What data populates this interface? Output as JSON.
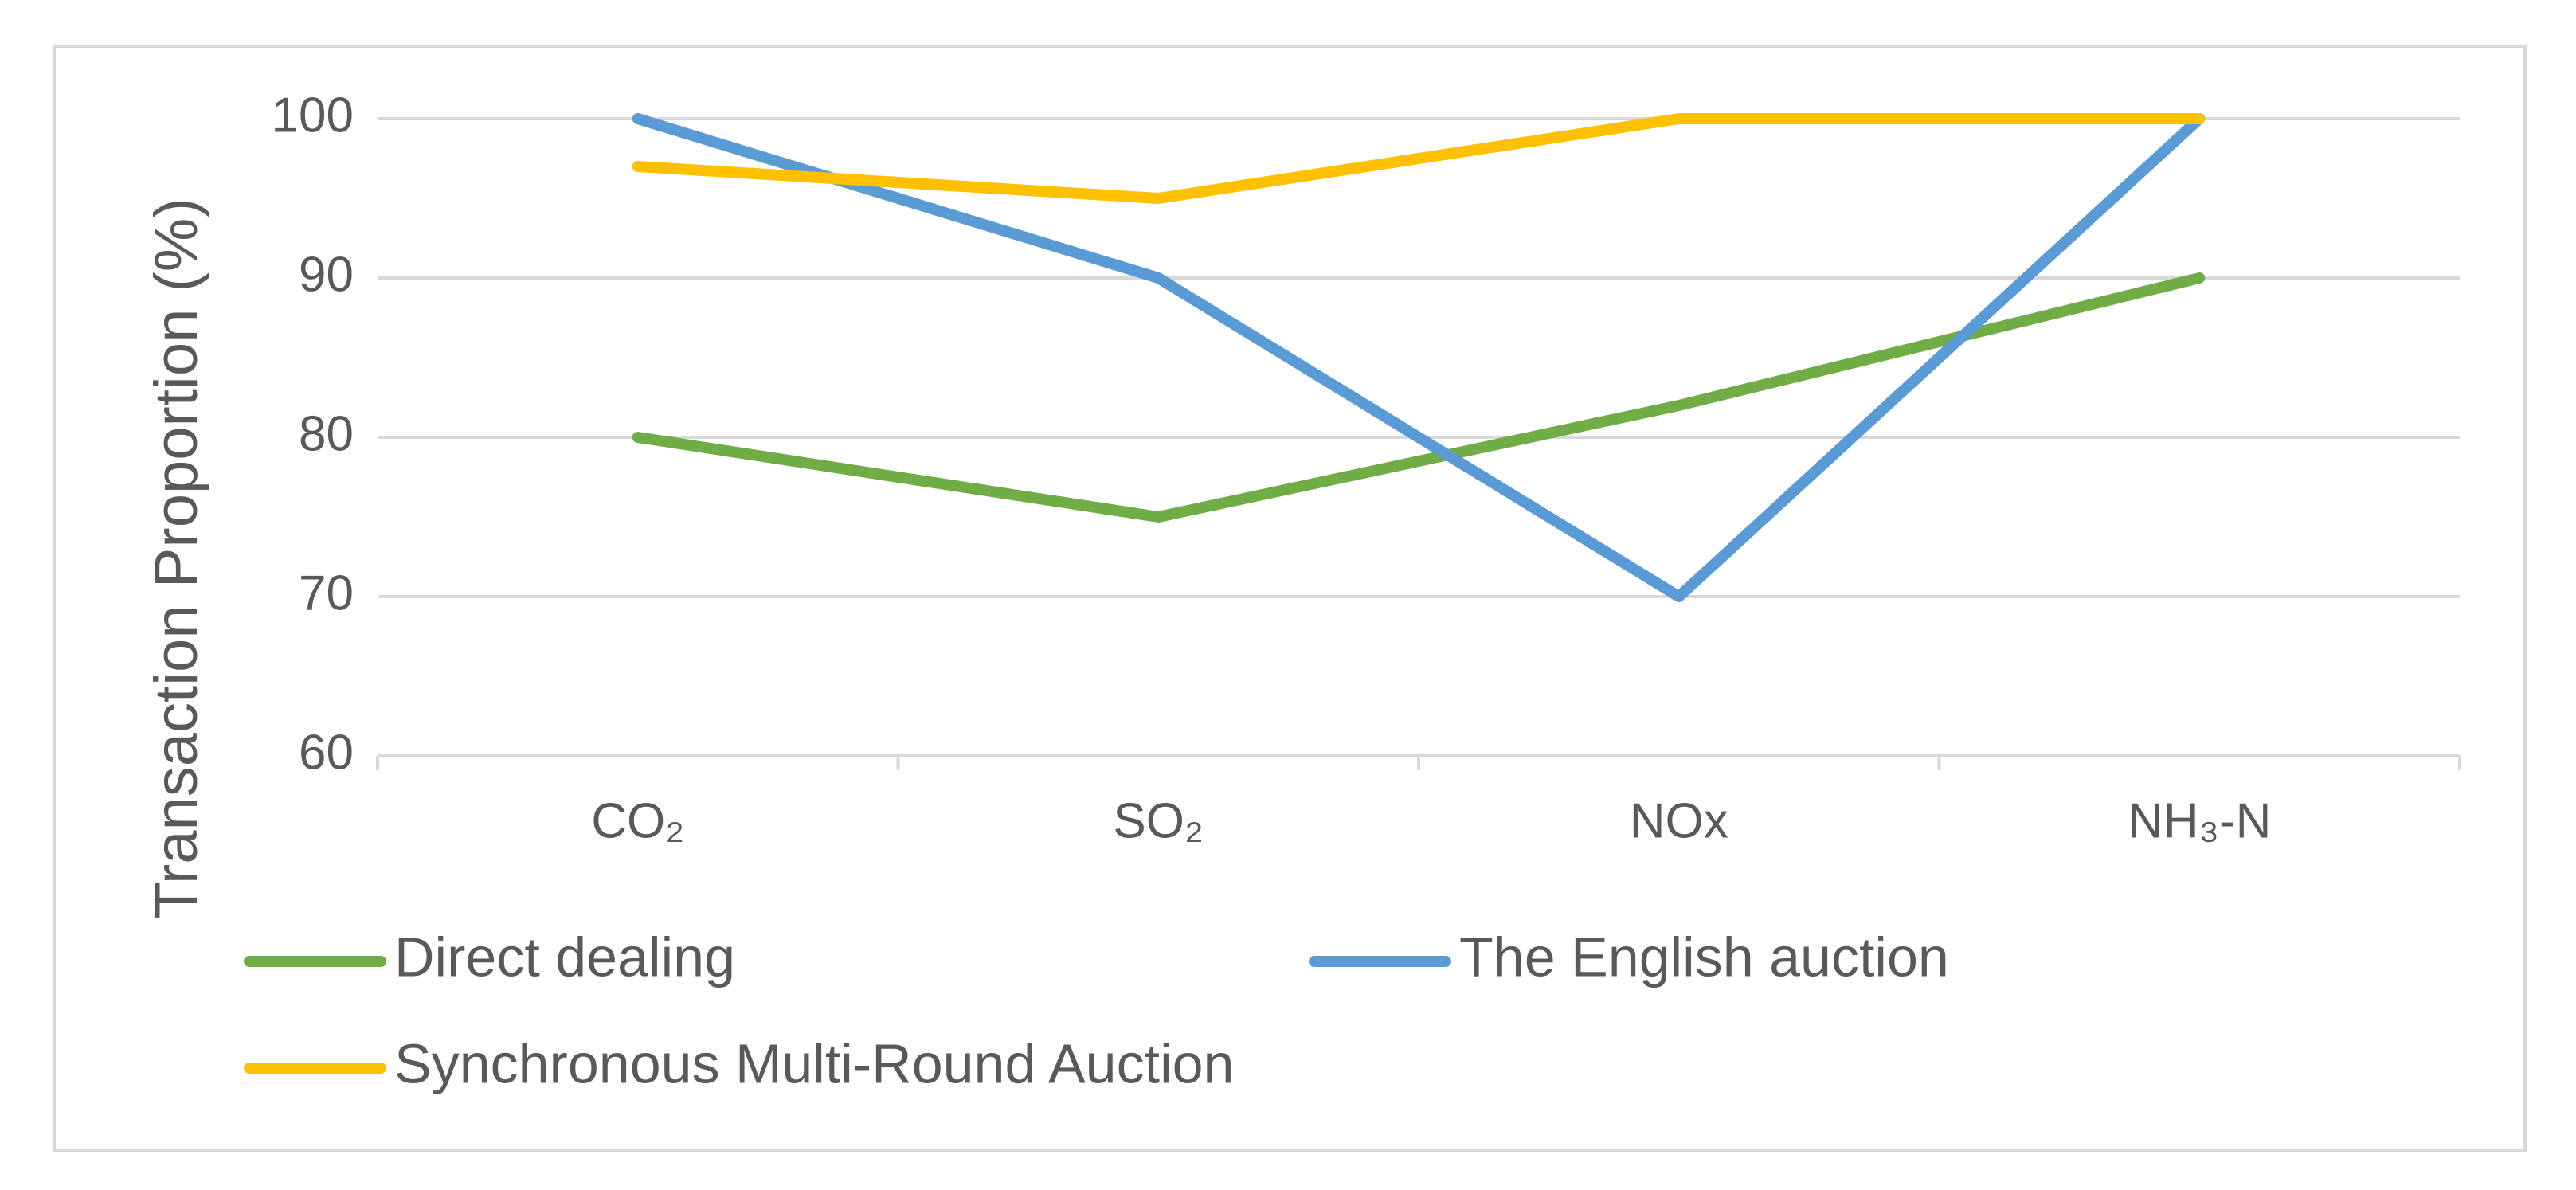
{
  "chart_data": {
    "type": "line",
    "y_label": "Transaction Proportion (%)",
    "categories": [
      "CO₂",
      "SO₂",
      "NOx",
      "NH₃-N"
    ],
    "series": [
      {
        "name": "Direct dealing",
        "color": "#70ad47",
        "values": [
          80,
          75,
          82,
          90
        ]
      },
      {
        "name": "The English auction",
        "color": "#5b9bd5",
        "values": [
          100,
          90,
          70,
          100
        ]
      },
      {
        "name": "Synchronous Multi-Round Auction",
        "color": "#ffc000",
        "values": [
          97,
          95,
          100,
          100
        ]
      }
    ],
    "ylim": [
      60,
      100
    ],
    "yticks": [
      60,
      70,
      80,
      90,
      100
    ],
    "grid": true,
    "legend": "bottom"
  }
}
